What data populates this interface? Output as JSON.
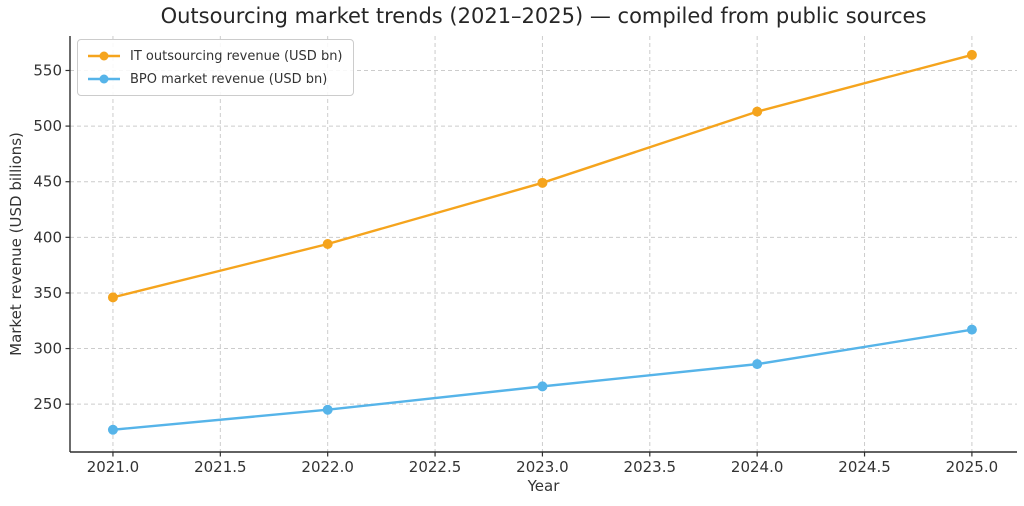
{
  "chart_data": {
    "type": "line",
    "title": "Outsourcing market trends (2021–2025) — compiled from public sources",
    "xlabel": "Year",
    "ylabel": "Market revenue (USD billions)",
    "x": [
      2021,
      2022,
      2023,
      2024,
      2025
    ],
    "series": [
      {
        "name": "IT outsourcing revenue (USD bn)",
        "color": "#f5a41d",
        "values": [
          346,
          394,
          449,
          513,
          564
        ]
      },
      {
        "name": "BPO market revenue (USD bn)",
        "color": "#56b4e9",
        "values": [
          227,
          245,
          266,
          286,
          317
        ]
      }
    ],
    "x_ticks": {
      "values": [
        2021,
        2021.5,
        2022,
        2022.5,
        2023,
        2023.5,
        2024,
        2024.5,
        2025
      ],
      "labels": [
        "2021.0",
        "2021.5",
        "2022.0",
        "2022.5",
        "2023.0",
        "2023.5",
        "2024.0",
        "2024.5",
        "2025.0"
      ]
    },
    "y_ticks": {
      "values": [
        250,
        300,
        350,
        400,
        450,
        500,
        550
      ],
      "labels": [
        "250",
        "300",
        "350",
        "400",
        "450",
        "500",
        "550"
      ]
    },
    "xlim": [
      2020.8,
      2025.21
    ],
    "ylim": [
      207,
      581
    ],
    "grid": {
      "on": true,
      "style": "dashed",
      "color": "#cccccc"
    },
    "legend_position": "upper left",
    "colors": {
      "spine": "#2e2e2e",
      "tick_text": "#333333",
      "title_text": "#262626"
    }
  }
}
